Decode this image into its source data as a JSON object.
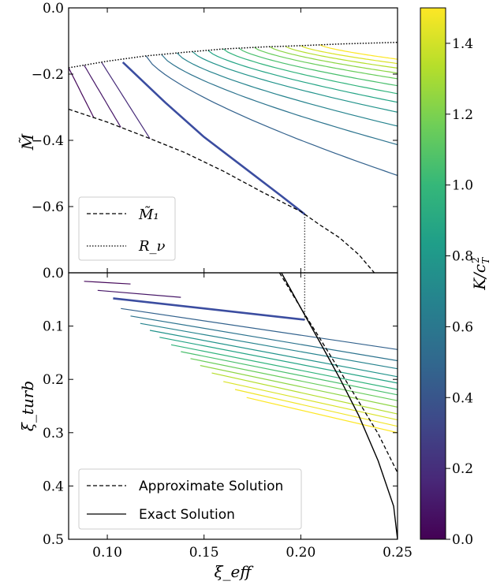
{
  "colors": {
    "viridis": [
      "#440154",
      "#482878",
      "#3e4989",
      "#31688e",
      "#26828e",
      "#1f9e89",
      "#35b779",
      "#6ece58",
      "#b5de2b",
      "#fde725"
    ],
    "highlight": "#3b4da0",
    "black": "#000000"
  },
  "colorbar": {
    "label": "K/c_T^2",
    "label_main": "K/c",
    "label_sub": "T",
    "label_sup": "2",
    "range": [
      0.0,
      1.5
    ],
    "ticks": [
      "0.0",
      "0.2",
      "0.4",
      "0.6",
      "0.8",
      "1.0",
      "1.2",
      "1.4"
    ],
    "tick_values": [
      0.0,
      0.2,
      0.4,
      0.6,
      0.8,
      1.0,
      1.2,
      1.4
    ]
  },
  "chart_data": [
    {
      "type": "line",
      "panel": "top",
      "ylabel": "M̃",
      "xlim": [
        0.08,
        0.25
      ],
      "ylim": [
        -0.8,
        0.0
      ],
      "yticks": [
        "0.0",
        "−0.2",
        "−0.4",
        "−0.6"
      ],
      "ytick_values": [
        0.0,
        -0.2,
        -0.4,
        -0.6
      ],
      "legend": {
        "placement": "lower-left",
        "entries": [
          "M̃₁",
          "R_ν"
        ]
      },
      "M1_boundary": {
        "x": [
          0.08,
          0.1,
          0.12,
          0.14,
          0.16,
          0.18,
          0.2,
          0.21,
          0.22,
          0.23,
          0.238
        ],
        "y": [
          -0.306,
          -0.345,
          -0.39,
          -0.437,
          -0.493,
          -0.556,
          -0.615,
          -0.656,
          -0.694,
          -0.745,
          -0.8
        ]
      },
      "R_nu_boundary": {
        "x": [
          0.08,
          0.1,
          0.12,
          0.14,
          0.16,
          0.18,
          0.2,
          0.22,
          0.25
        ],
        "y": [
          -0.181,
          -0.161,
          -0.145,
          -0.134,
          -0.124,
          -0.118,
          -0.114,
          -0.109,
          -0.104
        ]
      },
      "highlight_curve": {
        "K": 0.35,
        "x": [
          0.108,
          0.13,
          0.15,
          0.17,
          0.19,
          0.202
        ],
        "y": [
          -0.164,
          -0.286,
          -0.39,
          -0.479,
          -0.568,
          -0.623
        ]
      },
      "series_K": [
        0.03,
        0.09,
        0.18,
        0.35,
        0.47,
        0.57,
        0.67,
        0.77,
        0.87,
        0.97,
        1.06,
        1.15,
        1.24,
        1.33,
        1.42,
        1.5
      ],
      "series_x_start": [
        0.08,
        0.088,
        0.097,
        0.108,
        0.12,
        0.128,
        0.136,
        0.144,
        0.152,
        0.16,
        0.168,
        0.176,
        0.184,
        0.192,
        0.2,
        0.21
      ],
      "series_end_y": [
        -0.343,
        -0.373,
        -0.425,
        -0.623,
        -0.506,
        -0.413,
        -0.357,
        -0.315,
        -0.285,
        -0.259,
        -0.235,
        -0.214,
        -0.197,
        -0.182,
        -0.168,
        -0.155
      ]
    },
    {
      "type": "line",
      "panel": "bottom",
      "xlabel": "ξ_eff",
      "ylabel": "ξ_turb",
      "xlim": [
        0.08,
        0.25
      ],
      "ylim": [
        0.0,
        0.5
      ],
      "inverted_y": true,
      "xticks": [
        "0.10",
        "0.15",
        "0.20",
        "0.25"
      ],
      "xtick_values": [
        0.1,
        0.15,
        0.2,
        0.25
      ],
      "yticks": [
        "0.0",
        "0.1",
        "0.2",
        "0.3",
        "0.4",
        "0.5"
      ],
      "ytick_values": [
        0.0,
        0.1,
        0.2,
        0.3,
        0.4,
        0.5
      ],
      "legend": {
        "placement": "lower-left",
        "entries": [
          "Approximate Solution",
          "Exact Solution"
        ]
      },
      "approx_curve": {
        "x": [
          0.189,
          0.2,
          0.21,
          0.22,
          0.23,
          0.24,
          0.25
        ],
        "y": [
          0.0,
          0.066,
          0.124,
          0.183,
          0.242,
          0.302,
          0.375
        ]
      },
      "exact_curve": {
        "x": [
          0.19,
          0.2,
          0.21,
          0.22,
          0.23,
          0.24,
          0.248,
          0.25
        ],
        "y": [
          0.0,
          0.066,
          0.131,
          0.197,
          0.268,
          0.353,
          0.438,
          0.5
        ]
      },
      "highlight_segment": {
        "x": [
          0.103,
          0.202
        ],
        "y": [
          0.048,
          0.088
        ]
      },
      "segments": [
        {
          "x": [
            0.088,
            0.112
          ],
          "y": [
            0.016,
            0.021
          ]
        },
        {
          "x": [
            0.095,
            0.138
          ],
          "y": [
            0.033,
            0.046
          ]
        },
        {
          "x": [
            0.107,
            0.25
          ],
          "y": [
            0.067,
            0.144
          ]
        },
        {
          "x": [
            0.112,
            0.25
          ],
          "y": [
            0.081,
            0.165
          ]
        },
        {
          "x": [
            0.117,
            0.25
          ],
          "y": [
            0.095,
            0.18
          ]
        },
        {
          "x": [
            0.122,
            0.25
          ],
          "y": [
            0.108,
            0.195
          ]
        },
        {
          "x": [
            0.127,
            0.25
          ],
          "y": [
            0.121,
            0.207
          ]
        },
        {
          "x": [
            0.133,
            0.25
          ],
          "y": [
            0.135,
            0.219
          ]
        },
        {
          "x": [
            0.138,
            0.25
          ],
          "y": [
            0.148,
            0.229
          ]
        },
        {
          "x": [
            0.143,
            0.25
          ],
          "y": [
            0.161,
            0.24
          ]
        },
        {
          "x": [
            0.148,
            0.25
          ],
          "y": [
            0.174,
            0.252
          ]
        },
        {
          "x": [
            0.154,
            0.25
          ],
          "y": [
            0.188,
            0.265
          ]
        },
        {
          "x": [
            0.16,
            0.25
          ],
          "y": [
            0.204,
            0.276
          ]
        },
        {
          "x": [
            0.166,
            0.25
          ],
          "y": [
            0.219,
            0.288
          ]
        },
        {
          "x": [
            0.172,
            0.25
          ],
          "y": [
            0.234,
            0.3
          ]
        }
      ],
      "segment_K": [
        0.03,
        0.09,
        0.47,
        0.57,
        0.67,
        0.77,
        0.87,
        0.97,
        1.06,
        1.15,
        1.24,
        1.33,
        1.42,
        1.47,
        1.5
      ]
    }
  ],
  "connector": {
    "x": 0.202,
    "y_top": -0.623,
    "y_bottom": 0.088
  }
}
